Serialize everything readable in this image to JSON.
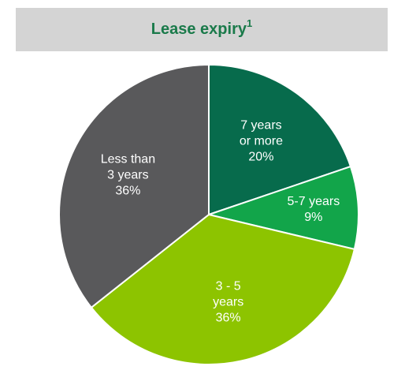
{
  "chart_data": {
    "type": "pie",
    "title": "Lease expiry",
    "title_note": "1",
    "categories": [
      "7 years\nor more",
      "5-7 years",
      "3 - 5\nyears",
      "Less than\n3 years"
    ],
    "values": [
      20,
      9,
      36,
      36
    ],
    "value_labels": [
      "20%",
      "9%",
      "36%",
      "36%"
    ],
    "colors": [
      "#076b4c",
      "#12a54a",
      "#8dc400",
      "#59595b"
    ]
  }
}
